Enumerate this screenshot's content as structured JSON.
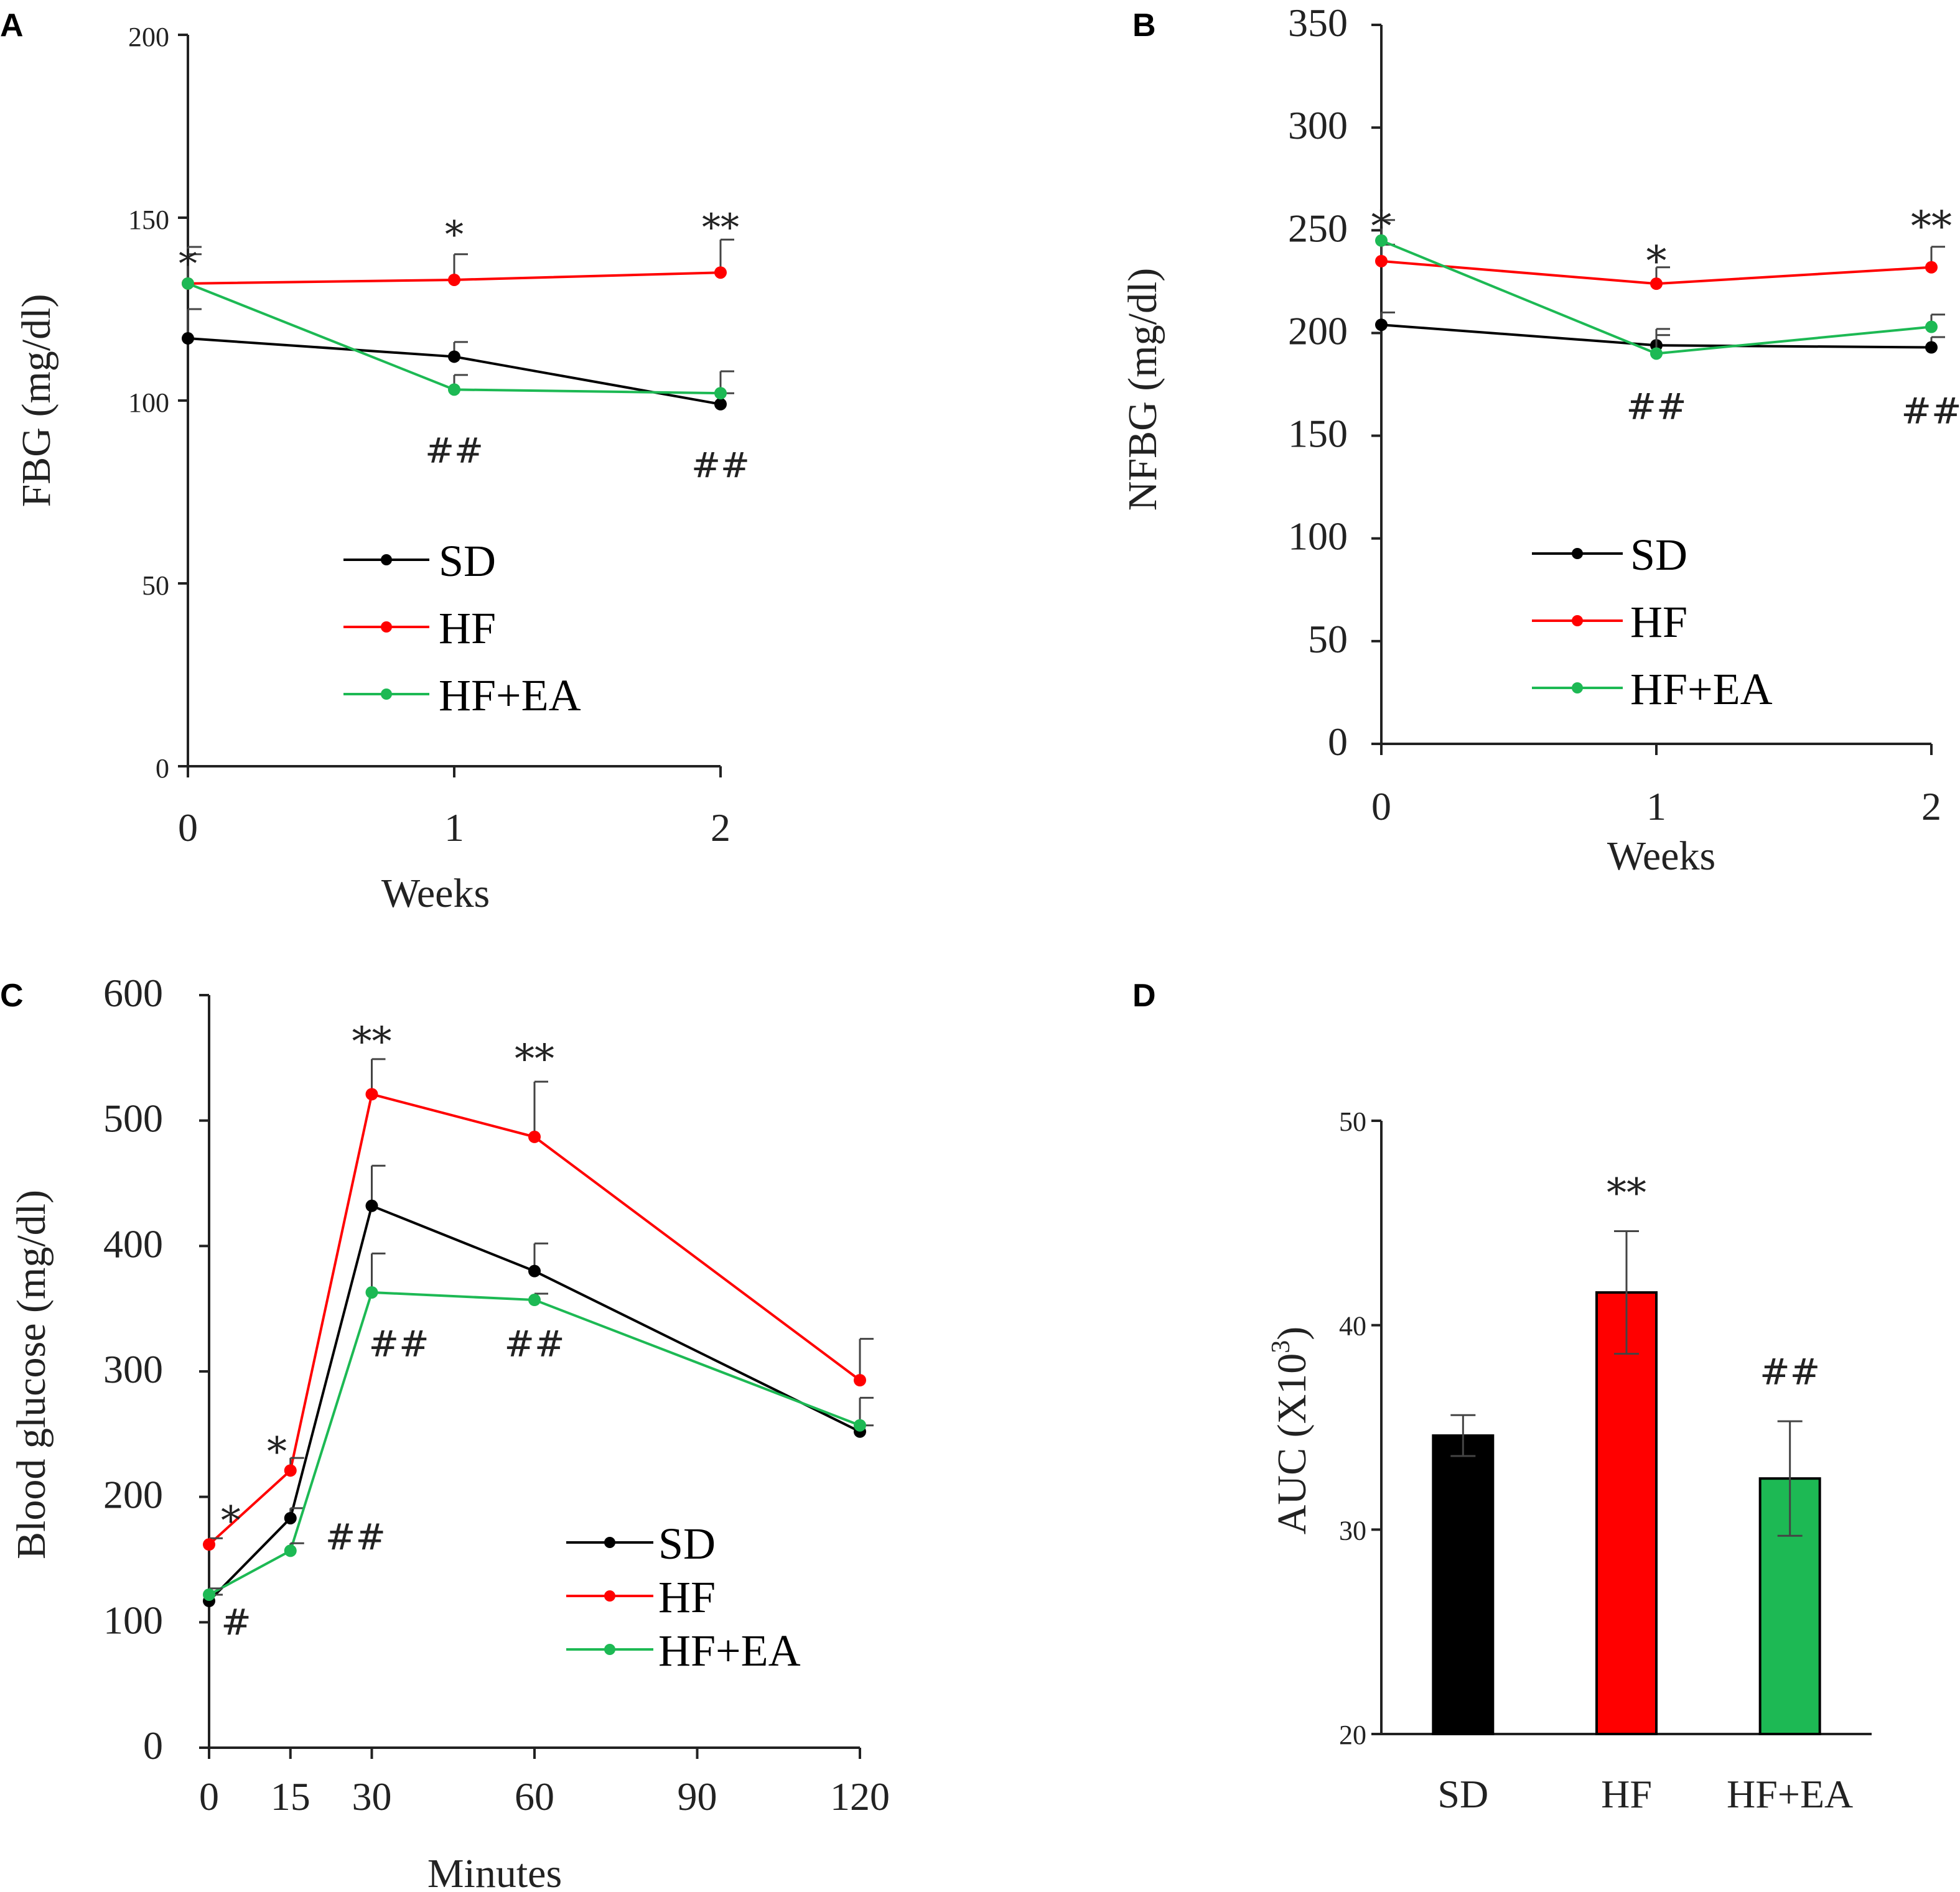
{
  "colors": {
    "SD": "#000000",
    "HF": "#ff0000",
    "HF+EA": "#1db954",
    "axis": "#222222"
  },
  "chart_data": [
    {
      "id": "A",
      "panel_label": "A",
      "type": "line",
      "x": [
        0,
        1,
        2
      ],
      "xtick_labels": [
        "0",
        "1",
        "2"
      ],
      "ytick_labels": [
        "0",
        "50",
        "100",
        "150",
        "200"
      ],
      "xlim": [
        0,
        2
      ],
      "ylim": [
        0,
        200
      ],
      "xlabel": "Weeks",
      "ylabel": "FBG (mg/dl)",
      "legend": [
        "SD",
        "HF",
        "HF+EA"
      ],
      "legend_position": "bottom-center",
      "series": [
        {
          "name": "SD",
          "values": [
            117,
            112,
            99
          ],
          "err": [
            8,
            4,
            3
          ]
        },
        {
          "name": "HF",
          "values": [
            132,
            133,
            135
          ],
          "err": [
            10,
            7,
            9
          ]
        },
        {
          "name": "HF+EA",
          "values": [
            132,
            103,
            102
          ],
          "err": [
            8,
            4,
            6
          ]
        }
      ],
      "annotations": [
        {
          "text": "*",
          "x": 0,
          "y": 139
        },
        {
          "text": "*",
          "x": 1,
          "y": 147
        },
        {
          "text": "**",
          "x": 2,
          "y": 149
        },
        {
          "text": "##",
          "x": 1,
          "y": 83
        },
        {
          "text": "##",
          "x": 2,
          "y": 79
        }
      ]
    },
    {
      "id": "B",
      "panel_label": "B",
      "type": "line",
      "x": [
        0,
        1,
        2
      ],
      "xtick_labels": [
        "0",
        "1",
        "2"
      ],
      "ytick_labels": [
        "0",
        "50",
        "100",
        "150",
        "200",
        "250",
        "300",
        "350"
      ],
      "xlim": [
        0,
        2
      ],
      "ylim": [
        0,
        350
      ],
      "xlabel": "Weeks",
      "ylabel": "NFBG (mg/dl)",
      "legend": [
        "SD",
        "HF",
        "HF+EA"
      ],
      "legend_position": "bottom-center",
      "series": [
        {
          "name": "SD",
          "values": [
            204,
            194,
            193
          ],
          "err": [
            6,
            5,
            5
          ]
        },
        {
          "name": "HF",
          "values": [
            235,
            224,
            232
          ],
          "err": [
            8,
            8,
            10
          ]
        },
        {
          "name": "HF+EA",
          "values": [
            245,
            190,
            203
          ],
          "err": [
            10,
            12,
            6
          ]
        }
      ],
      "annotations": [
        {
          "text": "*",
          "x": 0,
          "y": 256
        },
        {
          "text": "*",
          "x": 1,
          "y": 239
        },
        {
          "text": "**",
          "x": 2,
          "y": 256
        },
        {
          "text": "##",
          "x": 1,
          "y": 158
        },
        {
          "text": "##",
          "x": 2,
          "y": 156
        }
      ]
    },
    {
      "id": "C",
      "panel_label": "C",
      "type": "line",
      "x": [
        0,
        15,
        30,
        60,
        120
      ],
      "xticks": [
        0,
        15,
        30,
        60,
        90,
        120
      ],
      "xtick_labels": [
        "0",
        "15",
        "30",
        "60",
        "90",
        "120"
      ],
      "ytick_labels": [
        "0",
        "100",
        "200",
        "300",
        "400",
        "500",
        "600"
      ],
      "xlim": [
        0,
        120
      ],
      "ylim": [
        0,
        600
      ],
      "xlabel": "Minutes",
      "ylabel": "Blood glucose (mg/dl)",
      "legend": [
        "SD",
        "HF",
        "HF+EA"
      ],
      "legend_position": "bottom-right",
      "series": [
        {
          "name": "SD",
          "values": [
            117,
            183,
            432,
            380,
            252
          ],
          "err": [
            5,
            8,
            32,
            22,
            5
          ]
        },
        {
          "name": "HF",
          "values": [
            162,
            221,
            521,
            487,
            293
          ],
          "err": [
            5,
            10,
            28,
            44,
            33
          ]
        },
        {
          "name": "HF+EA",
          "values": [
            122,
            157,
            363,
            357,
            257
          ],
          "err": [
            5,
            6,
            31,
            5,
            22
          ]
        }
      ],
      "annotations": [
        {
          "text": "*",
          "x": 4,
          "y": 190
        },
        {
          "text": "*",
          "x": 12.5,
          "y": 245
        },
        {
          "text": "**",
          "x": 30,
          "y": 572
        },
        {
          "text": "**",
          "x": 60,
          "y": 558
        },
        {
          "text": "#",
          "x": 5,
          "y": 90
        },
        {
          "text": "##",
          "x": 27,
          "y": 158
        },
        {
          "text": "##",
          "x": 35,
          "y": 312
        },
        {
          "text": "##",
          "x": 60,
          "y": 312
        }
      ]
    },
    {
      "id": "D",
      "panel_label": "D",
      "type": "bar",
      "categories": [
        "SD",
        "HF",
        "HF+EA"
      ],
      "values": [
        34.6,
        41.6,
        32.5
      ],
      "err": [
        1.0,
        3.0,
        2.8
      ],
      "ytick_labels": [
        "20",
        "30",
        "40",
        "50"
      ],
      "ylim": [
        20,
        50
      ],
      "ylabel_main": "AUC (X10",
      "ylabel_sup": "3",
      "ylabel_close": ")",
      "annotations": [
        {
          "text": "**",
          "index": 1,
          "y": 46.9
        },
        {
          "text": "##",
          "index": 2,
          "y": 37.1
        }
      ]
    }
  ]
}
